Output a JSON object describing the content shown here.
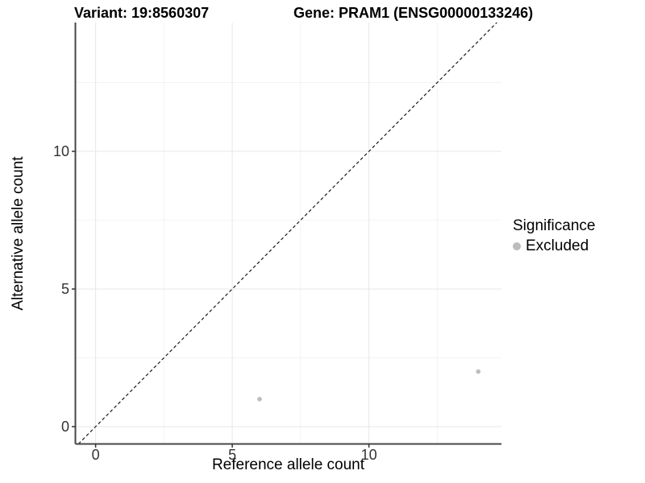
{
  "chart_data": {
    "type": "scatter",
    "title_left": "Variant: 19:8560307",
    "title_right": "Gene: PRAM1 (ENSG00000133246)",
    "xlabel": "Reference allele count",
    "ylabel": "Alternative allele count",
    "xlim": [
      -0.74,
      14.85
    ],
    "ylim": [
      -0.63,
      14.68
    ],
    "x_ticks": [
      0,
      5,
      10
    ],
    "y_ticks": [
      0,
      5,
      10
    ],
    "x_minor_ticks": [
      2.5,
      7.5,
      12.5
    ],
    "y_minor_ticks": [
      2.5,
      7.5,
      12.5
    ],
    "grid": true,
    "identity_line": {
      "equation": "y = x",
      "slope": 1,
      "intercept": 0,
      "style": "dashed",
      "color": "#1a1a1a"
    },
    "series": [
      {
        "name": "Excluded",
        "color": "#bcbcbc",
        "points": [
          {
            "x": 6,
            "y": 1
          },
          {
            "x": 14,
            "y": 2
          }
        ]
      }
    ],
    "legend": {
      "title": "Significance",
      "position": "right",
      "items": [
        {
          "label": "Excluded",
          "color": "#bcbcbc"
        }
      ]
    },
    "colors": {
      "background": "#ffffff",
      "grid_major": "#e7e7e7",
      "grid_minor": "#f3f3f3",
      "axis_line": "#474747",
      "tick_mark": "#333333",
      "tick_label": "#333333",
      "text": "#000000"
    }
  }
}
